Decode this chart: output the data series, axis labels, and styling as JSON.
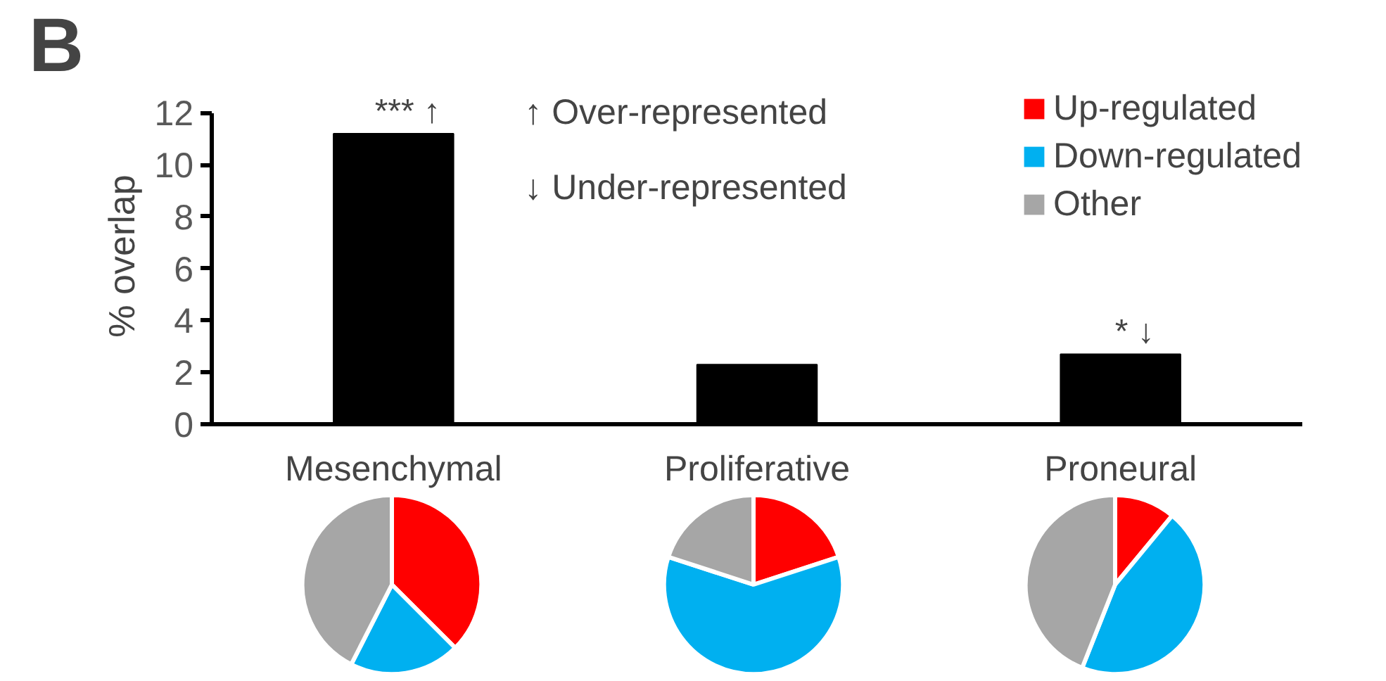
{
  "chart_data": [
    {
      "type": "bar",
      "title": "B",
      "ylabel": "% overlap",
      "categories": [
        "Mesenchymal",
        "Proliferative",
        "Proneural"
      ],
      "values": [
        11.2,
        2.3,
        2.7
      ],
      "color": "#000000",
      "ylim": [
        0,
        12
      ],
      "yticks": [
        0,
        2,
        4,
        6,
        8,
        10,
        12
      ],
      "grid": false,
      "annotations": [
        "↑ Over-represented",
        "↓ Under-represented",
        {
          "text": "*** ↑",
          "x": "Mesenchymal",
          "y": 11.2
        },
        {
          "text": "* ↓",
          "x": "Proneural",
          "y": 2.7
        }
      ]
    },
    {
      "type": "pie",
      "categories": [
        "Up-regulated",
        "Down-regulated",
        "Other"
      ],
      "values": [
        37.5,
        20,
        42.5
      ],
      "colors": [
        "#ff0000",
        "#00b0f0",
        "#a6a6a6"
      ],
      "legend": "top right"
    },
    {
      "type": "pie",
      "values": [
        20,
        60,
        20
      ],
      "colors": [
        "#ff0000",
        "#00b0f0",
        "#a6a6a6"
      ]
    },
    {
      "type": "pie",
      "values": [
        11,
        45,
        44
      ],
      "colors": [
        "#ff0000",
        "#00b0f0",
        "#a6a6a6"
      ]
    }
  ]
}
